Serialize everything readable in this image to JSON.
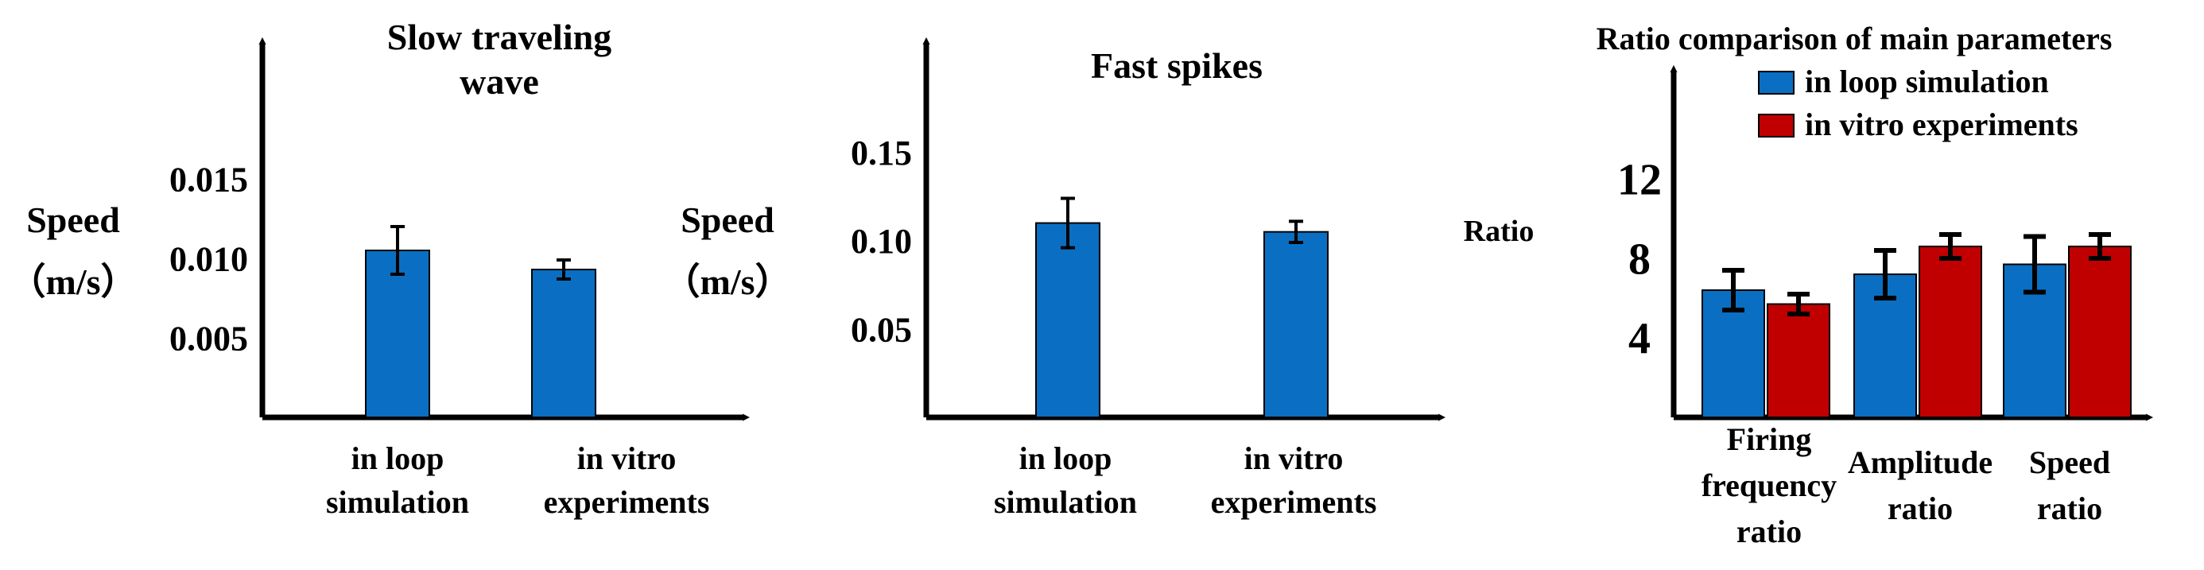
{
  "colors": {
    "blue": "#0a6fc2",
    "red": "#c00000",
    "axis": "#000000"
  },
  "chart_data": [
    {
      "type": "bar",
      "title": [
        "Slow traveling",
        "wave"
      ],
      "ylabel": [
        "Speed",
        "（m/s）"
      ],
      "categories": [
        [
          "in loop",
          "simulation"
        ],
        [
          "in vitro",
          "experiments"
        ]
      ],
      "ylim": [
        0,
        0.02
      ],
      "yticks": [
        0.005,
        0.01,
        0.015
      ],
      "ytick_labels": [
        "0.005",
        "0.010",
        "0.015"
      ],
      "series": [
        {
          "values": [
            0.0105,
            0.0093
          ],
          "errors": [
            0.0015,
            0.0006
          ],
          "color": "#0a6fc2"
        }
      ],
      "grid": false
    },
    {
      "type": "bar",
      "title": [
        "Fast spikes"
      ],
      "ylabel": [
        "Speed",
        "（m/s）"
      ],
      "categories": [
        [
          "in loop",
          "simulation"
        ],
        [
          "in vitro",
          "experiments"
        ]
      ],
      "ylim": [
        0,
        0.18
      ],
      "yticks": [
        0.05,
        0.1,
        0.15
      ],
      "ytick_labels": [
        "0.05",
        "0.10",
        "0.15"
      ],
      "series": [
        {
          "values": [
            0.11,
            0.105
          ],
          "errors": [
            0.014,
            0.006
          ],
          "color": "#0a6fc2"
        }
      ],
      "grid": false
    },
    {
      "type": "bar",
      "title": [
        "Ratio comparison of main parameters"
      ],
      "ylabel": [
        "Ratio"
      ],
      "categories": [
        [
          "Firing",
          "frequency",
          "ratio"
        ],
        [
          "Amplitude",
          "ratio"
        ],
        [
          "Speed",
          "ratio"
        ]
      ],
      "ylim": [
        0,
        16
      ],
      "yticks": [
        4,
        8,
        12
      ],
      "ytick_labels": [
        "4",
        "8",
        "12"
      ],
      "series": [
        {
          "name": "in loop simulation",
          "values": [
            6.4,
            7.2,
            7.7
          ],
          "errors": [
            1.0,
            1.2,
            1.4
          ],
          "color": "#0a6fc2"
        },
        {
          "name": "in vitro experiments",
          "values": [
            5.7,
            8.6,
            8.6
          ],
          "errors": [
            0.5,
            0.6,
            0.6
          ],
          "color": "#c00000"
        }
      ],
      "legend": "top",
      "grid": false
    }
  ]
}
